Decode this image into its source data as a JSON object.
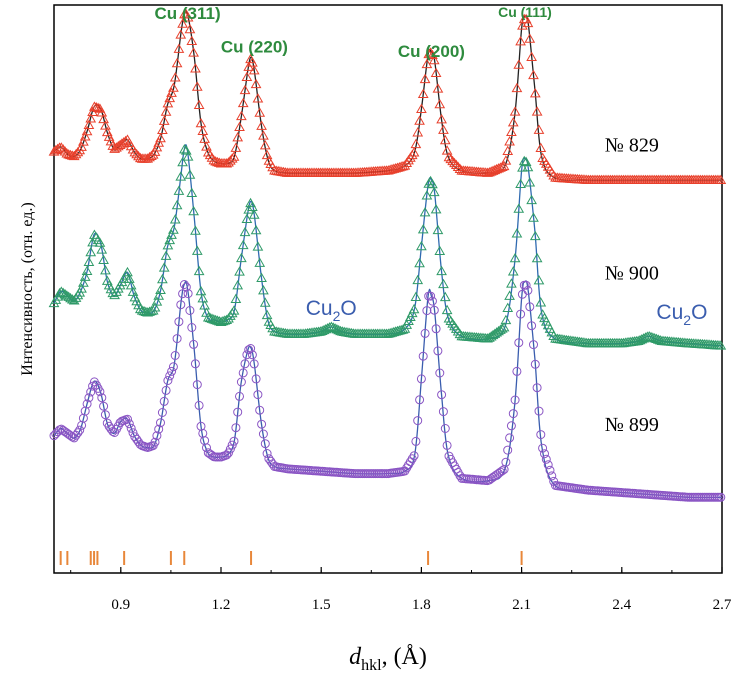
{
  "chart_data": {
    "type": "line",
    "title": "",
    "xlabel": "d",
    "xlabel_sub": "hkl",
    "xlabel_unit": ", (Å)",
    "ylabel": "Интенсивность, (отн. ед.)",
    "xlim": [
      0.7,
      2.7
    ],
    "ylim": [
      0,
      12
    ],
    "xticks": [
      "0.9",
      "1.2",
      "1.5",
      "1.8",
      "2.1",
      "2.4",
      "2.7"
    ],
    "peak_labels": [
      {
        "text": "Cu (311)",
        "x": 1.1,
        "y": 11.7
      },
      {
        "text": "Cu (220)",
        "x": 1.3,
        "y": 11.0
      },
      {
        "text": "Cu (200)",
        "x": 1.83,
        "y": 10.9
      },
      {
        "text": "Cu (111)",
        "x": 2.11,
        "y": 11.75
      }
    ],
    "phase_labels": [
      {
        "text": "Cu",
        "sub": "2",
        "tail": "O",
        "x": 1.53,
        "y": 5.45
      },
      {
        "text": "Cu",
        "sub": "2",
        "tail": "O",
        "x": 2.58,
        "y": 5.37
      }
    ],
    "reference_ticks": [
      0.72,
      0.74,
      0.81,
      0.82,
      0.83,
      0.91,
      1.05,
      1.09,
      1.29,
      1.82,
      2.1
    ],
    "series": [
      {
        "name": "№ 829",
        "label_x": 2.43,
        "label_y": 8.9,
        "color": "#e8402c",
        "marker": "triangle",
        "x": [
          0.7,
          0.72,
          0.74,
          0.76,
          0.78,
          0.8,
          0.82,
          0.84,
          0.86,
          0.88,
          0.9,
          0.92,
          0.94,
          0.96,
          0.98,
          1.0,
          1.02,
          1.04,
          1.06,
          1.08,
          1.09,
          1.1,
          1.12,
          1.14,
          1.16,
          1.18,
          1.2,
          1.22,
          1.24,
          1.26,
          1.28,
          1.29,
          1.3,
          1.32,
          1.34,
          1.36,
          1.4,
          1.5,
          1.6,
          1.7,
          1.75,
          1.78,
          1.8,
          1.82,
          1.83,
          1.84,
          1.86,
          1.88,
          1.92,
          2.0,
          2.05,
          2.08,
          2.1,
          2.11,
          2.12,
          2.14,
          2.16,
          2.2,
          2.3,
          2.4,
          2.5,
          2.6,
          2.7
        ],
        "y": [
          8.9,
          9.0,
          8.85,
          8.8,
          8.95,
          9.35,
          9.85,
          9.8,
          9.3,
          8.95,
          9.05,
          9.15,
          8.9,
          8.75,
          8.75,
          8.85,
          9.2,
          9.9,
          10.3,
          11.4,
          11.8,
          11.8,
          10.9,
          9.5,
          8.9,
          8.7,
          8.65,
          8.65,
          8.8,
          9.6,
          10.6,
          10.9,
          10.6,
          9.5,
          8.75,
          8.5,
          8.45,
          8.45,
          8.45,
          8.5,
          8.6,
          8.9,
          9.8,
          10.95,
          11.0,
          10.8,
          9.6,
          8.8,
          8.5,
          8.45,
          8.6,
          9.7,
          11.5,
          11.75,
          11.6,
          10.2,
          8.8,
          8.35,
          8.3,
          8.3,
          8.3,
          8.3,
          8.3
        ]
      },
      {
        "name": "№ 900",
        "label_x": 2.43,
        "label_y": 6.2,
        "color": "#2f9a68",
        "marker": "triangle",
        "x": [
          0.7,
          0.72,
          0.74,
          0.76,
          0.78,
          0.8,
          0.82,
          0.84,
          0.86,
          0.88,
          0.9,
          0.92,
          0.94,
          0.96,
          0.98,
          1.0,
          1.02,
          1.04,
          1.06,
          1.08,
          1.09,
          1.1,
          1.12,
          1.14,
          1.16,
          1.18,
          1.2,
          1.22,
          1.24,
          1.26,
          1.28,
          1.29,
          1.3,
          1.32,
          1.34,
          1.36,
          1.4,
          1.45,
          1.5,
          1.53,
          1.56,
          1.6,
          1.7,
          1.75,
          1.78,
          1.8,
          1.82,
          1.83,
          1.84,
          1.86,
          1.88,
          1.92,
          2.0,
          2.05,
          2.08,
          2.1,
          2.11,
          2.12,
          2.14,
          2.16,
          2.2,
          2.3,
          2.4,
          2.45,
          2.48,
          2.52,
          2.6,
          2.7
        ],
        "y": [
          5.7,
          5.95,
          5.85,
          5.75,
          5.95,
          6.4,
          7.15,
          6.95,
          6.15,
          5.85,
          6.1,
          6.35,
          5.85,
          5.55,
          5.5,
          5.55,
          6.0,
          6.9,
          7.3,
          8.4,
          8.95,
          8.9,
          7.5,
          5.95,
          5.4,
          5.35,
          5.3,
          5.35,
          5.55,
          6.6,
          7.6,
          7.85,
          7.55,
          6.3,
          5.35,
          5.1,
          5.05,
          5.05,
          5.1,
          5.2,
          5.1,
          5.05,
          5.05,
          5.15,
          5.6,
          6.9,
          8.2,
          8.3,
          8.0,
          6.4,
          5.4,
          5.0,
          4.95,
          5.2,
          6.6,
          8.5,
          8.75,
          8.55,
          7.2,
          5.5,
          4.95,
          4.85,
          4.85,
          4.9,
          5.0,
          4.9,
          4.85,
          4.8
        ]
      },
      {
        "name": "№ 899",
        "label_x": 2.43,
        "label_y": 3.0,
        "color": "#8a55c4",
        "marker": "circle",
        "x": [
          0.7,
          0.72,
          0.74,
          0.76,
          0.78,
          0.8,
          0.82,
          0.84,
          0.86,
          0.88,
          0.9,
          0.92,
          0.94,
          0.96,
          0.98,
          1.0,
          1.02,
          1.04,
          1.06,
          1.08,
          1.09,
          1.1,
          1.12,
          1.14,
          1.16,
          1.18,
          1.2,
          1.22,
          1.24,
          1.26,
          1.28,
          1.29,
          1.3,
          1.32,
          1.34,
          1.36,
          1.4,
          1.5,
          1.6,
          1.7,
          1.75,
          1.78,
          1.8,
          1.82,
          1.83,
          1.84,
          1.86,
          1.88,
          1.92,
          2.0,
          2.05,
          2.08,
          2.1,
          2.11,
          2.12,
          2.14,
          2.16,
          2.2,
          2.3,
          2.4,
          2.5,
          2.6,
          2.7
        ],
        "y": [
          2.9,
          3.05,
          2.95,
          2.85,
          3.05,
          3.6,
          4.05,
          3.8,
          3.15,
          2.95,
          3.2,
          3.25,
          2.9,
          2.7,
          2.65,
          2.7,
          3.2,
          4.05,
          4.4,
          5.7,
          6.1,
          6.0,
          4.7,
          3.1,
          2.55,
          2.45,
          2.45,
          2.5,
          2.8,
          4.0,
          4.7,
          4.75,
          4.4,
          3.2,
          2.45,
          2.25,
          2.2,
          2.15,
          2.1,
          2.1,
          2.15,
          2.5,
          4.1,
          5.85,
          5.85,
          5.5,
          3.8,
          2.5,
          2.0,
          1.95,
          2.2,
          3.6,
          5.8,
          6.15,
          5.95,
          4.5,
          2.7,
          1.85,
          1.75,
          1.7,
          1.65,
          1.6,
          1.6
        ]
      }
    ]
  }
}
